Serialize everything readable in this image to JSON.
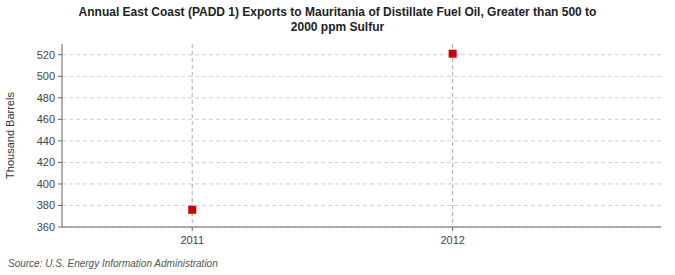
{
  "chart_data": {
    "type": "scatter",
    "title": "Annual East Coast (PADD 1) Exports to Mauritania of Distillate Fuel Oil, Greater than 500 to\n2000 ppm Sulfur",
    "y_label": "Thousand Barrels",
    "source": "Source: U.S. Energy Information Administration",
    "x": [
      2011,
      2012
    ],
    "values": [
      376,
      521
    ],
    "color": "#cc0000",
    "marker": "square",
    "xlim": [
      2010.5,
      2012.8
    ],
    "ylim": [
      360,
      530
    ],
    "xticks": [
      2011,
      2012
    ],
    "yticks": [
      360,
      380,
      400,
      420,
      440,
      460,
      480,
      500,
      520
    ],
    "grid": true
  }
}
